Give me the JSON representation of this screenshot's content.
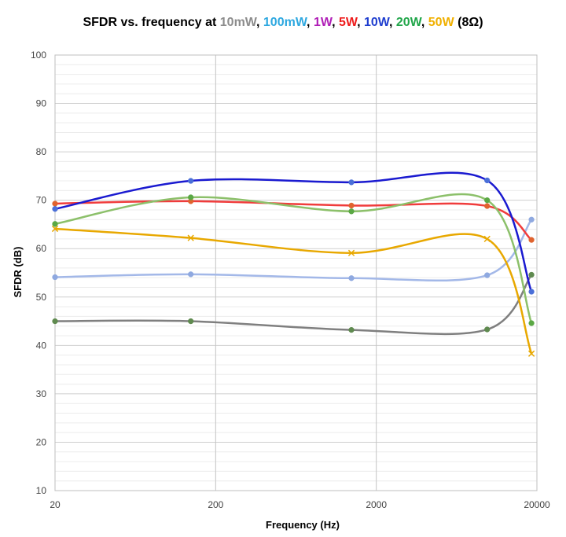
{
  "chart_data": {
    "type": "line",
    "title_parts": [
      {
        "text": "SFDR vs. frequency at ",
        "color": "#000000"
      },
      {
        "text": "10mW",
        "color": "#8c8c8c"
      },
      {
        "text": ", ",
        "color": "#000000"
      },
      {
        "text": "100mW",
        "color": "#2ea8e0"
      },
      {
        "text": ", ",
        "color": "#000000"
      },
      {
        "text": "1W",
        "color": "#b01fb7"
      },
      {
        "text": ", ",
        "color": "#000000"
      },
      {
        "text": "5W",
        "color": "#ee1c1c"
      },
      {
        "text": ", ",
        "color": "#000000"
      },
      {
        "text": "10W",
        "color": "#1f3ecf"
      },
      {
        "text": ", ",
        "color": "#000000"
      },
      {
        "text": "20W",
        "color": "#21a64a"
      },
      {
        "text": ", ",
        "color": "#000000"
      },
      {
        "text": "50W",
        "color": "#f0b000"
      },
      {
        "text": " (8Ω)",
        "color": "#000000"
      }
    ],
    "xlabel": "Frequency (Hz)",
    "ylabel": "SFDR (dB)",
    "x_scale": "log",
    "xlim": [
      20,
      20000
    ],
    "ylim": [
      10,
      100
    ],
    "x_ticks": [
      20,
      200,
      2000,
      20000
    ],
    "y_ticks": [
      10,
      20,
      30,
      40,
      50,
      60,
      70,
      80,
      90,
      100
    ],
    "grid": true,
    "series": [
      {
        "color": "#7f7f7f",
        "line_color": "#7f7f7f",
        "marker": "circle",
        "marker_color": "#5f8a4f",
        "x": [
          20,
          140,
          1400,
          9800,
          18500
        ],
        "y": [
          45.0,
          45.0,
          43.2,
          43.3,
          54.6
        ]
      },
      {
        "color": "#a3b8e8",
        "line_color": "#a3b8e8",
        "marker": "circle",
        "marker_color": "#8fa9e0",
        "x": [
          20,
          140,
          1400,
          9800,
          18500
        ],
        "y": [
          54.1,
          54.7,
          53.9,
          54.5,
          66.0
        ]
      },
      {
        "color": "#f03c3c",
        "line_color": "#f03c3c",
        "marker": "circle",
        "marker_color": "#e0632e",
        "x": [
          20,
          140,
          1400,
          9800,
          18500
        ],
        "y": [
          69.3,
          69.8,
          68.9,
          68.8,
          61.8
        ]
      },
      {
        "color": "#8cc06a",
        "line_color": "#8cc06a",
        "marker": "circle",
        "marker_color": "#5aa844",
        "x": [
          20,
          140,
          1400,
          9800,
          18500
        ],
        "y": [
          65.1,
          70.6,
          67.7,
          70.0,
          44.6
        ]
      },
      {
        "color": "#e8a800",
        "line_color": "#e8a800",
        "marker": "x",
        "marker_color": "#e8a800",
        "x": [
          20,
          140,
          1400,
          9800,
          18500
        ],
        "y": [
          64.1,
          62.2,
          59.1,
          62.0,
          38.3
        ]
      },
      {
        "color": "#1a1ad0",
        "line_color": "#1a1ad0",
        "marker": "circle",
        "marker_color": "#4a6fd8",
        "x": [
          20,
          140,
          1400,
          9800,
          18500
        ],
        "y": [
          68.2,
          74.0,
          73.7,
          74.1,
          51.1
        ]
      }
    ]
  }
}
